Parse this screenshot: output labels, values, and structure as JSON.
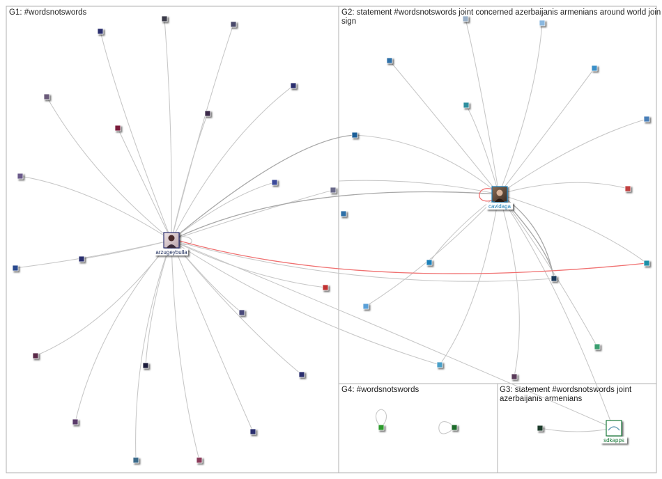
{
  "groups": [
    {
      "id": "G1",
      "title_lines": [
        "G1: #wordsnotswords"
      ]
    },
    {
      "id": "G2",
      "title_lines": [
        "G2: statement #wordsnotswords joint concerned azerbaijanis armenians around world join",
        "sign"
      ]
    },
    {
      "id": "G4",
      "title_lines": [
        "G4: #wordsnotswords"
      ]
    },
    {
      "id": "G3",
      "title_lines": [
        "G3: statement #wordsnotswords joint",
        "azerbaijanis armenians"
      ]
    }
  ],
  "hubs": [
    {
      "id": "arzugeybulla",
      "label": "arzugeybulla",
      "group": "G1",
      "label_color": "#1a2a5a"
    },
    {
      "id": "cavidaga",
      "label": "cavidaga",
      "group": "G2",
      "label_color": "#1e7fb8"
    },
    {
      "id": "sdkapps",
      "label": "sdkapps",
      "group": "G3",
      "label_color": "#1a7a3a"
    }
  ],
  "node_count": 43,
  "colors": {
    "panel_border": "#b0b0b0",
    "edge": "#c8c8c8",
    "edge_dark": "#a8a8a8",
    "edge_highlight": "#f07070",
    "g1_node": "#2b2f6e",
    "g2_node": "#2e8fc8",
    "g3_node": "#2f9a3f",
    "g4_node": "#2e9b2e"
  }
}
